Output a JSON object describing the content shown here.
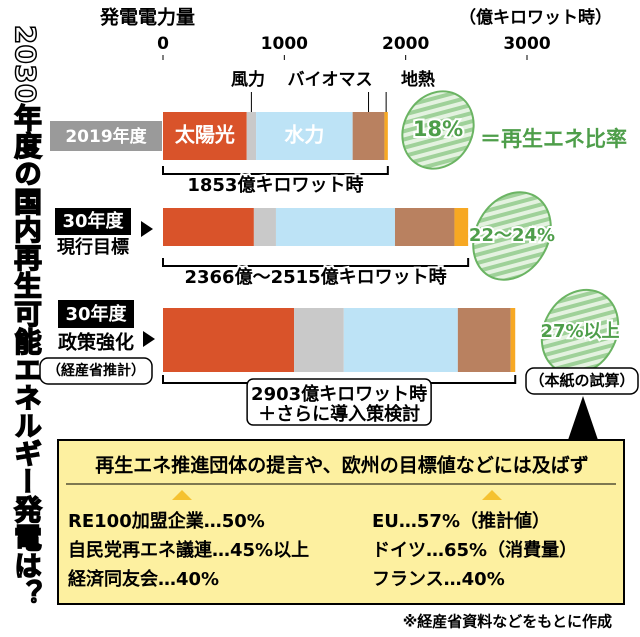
{
  "title": "2030年度の国内再生可能エネルギー発電は？",
  "chart_data": {
    "type": "bar",
    "orientation": "horizontal",
    "stacked": true,
    "x_label": "発電電力量",
    "x_unit": "（億キロワット時）",
    "xlim": [
      0,
      3000
    ],
    "xticks": [
      0,
      1000,
      2000,
      3000
    ],
    "categories": [
      "2019年度",
      "30年度",
      "30年度"
    ],
    "category_notes": [
      [],
      [
        "現行目標"
      ],
      [
        "政策強化",
        "（経産省推計）"
      ]
    ],
    "series": [
      {
        "name": "太陽光",
        "color": "#d9532a",
        "values": [
          690,
          749,
          1080
        ]
      },
      {
        "name": "風力",
        "color": "#c9c9c9",
        "values": [
          77,
          182,
          410
        ]
      },
      {
        "name": "水力",
        "color": "#bde3f6",
        "values": [
          796,
          981,
          940
        ]
      },
      {
        "name": "バイオマス",
        "color": "#b98160",
        "values": [
          262,
          490,
          435
        ]
      },
      {
        "name": "地熱",
        "color": "#f7a823",
        "values": [
          28,
          113,
          38
        ]
      }
    ],
    "total_labels": [
      [
        "1853億キロワット時"
      ],
      [
        "2366億～2515億キロワット時"
      ],
      [
        "2903億キロワット時",
        "＋さらに導入策検討"
      ]
    ],
    "share_labels": [
      "18%",
      "22～24%",
      "27%以上"
    ],
    "share_caption": "＝再生エネ比率",
    "share_note": "（本紙の試算）"
  },
  "comparison": {
    "heading": "再生エネ推進団体の提言や、欧州の目標値などには及ばず",
    "left": [
      "RE100加盟企業…50%",
      "自民党再エネ議連…45%以上",
      "経済同友会…40%"
    ],
    "right": [
      "EU…57%（推計値）",
      "ドイツ…65%（消費量）",
      "フランス…40%"
    ]
  },
  "source": "※経産省資料などをもとに作成"
}
